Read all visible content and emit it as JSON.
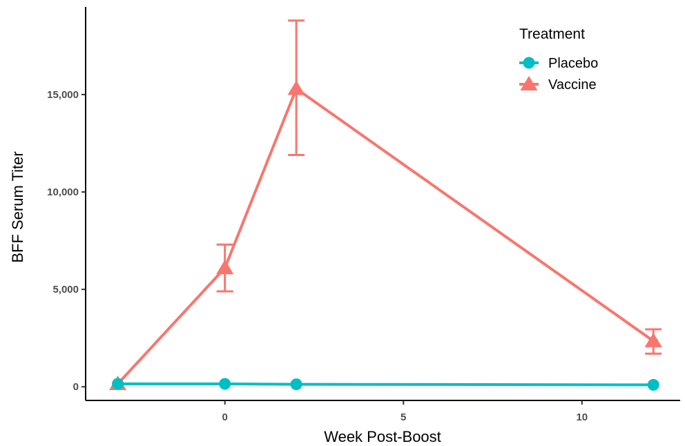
{
  "chart_data": {
    "type": "line",
    "title": "",
    "xlabel": "Week Post-Boost",
    "ylabel": "BFF Serum Titer",
    "xlim": [
      -3.9,
      12.75
    ],
    "ylim": [
      -700,
      19500
    ],
    "x_ticks": [
      0,
      5,
      10
    ],
    "x_tick_labels": [
      "0",
      "5",
      "10"
    ],
    "y_ticks": [
      0,
      5000,
      10000,
      15000
    ],
    "y_tick_labels": [
      "0",
      "5,000",
      "10,000",
      "15,000"
    ],
    "grid": false,
    "legend": {
      "title": "Treatment",
      "placement": "top-right"
    },
    "series": [
      {
        "name": "Placebo",
        "color": "#00BFC4",
        "marker": "circle",
        "points": [
          {
            "x": -3,
            "y": 150
          },
          {
            "x": 0,
            "y": 150
          },
          {
            "x": 2,
            "y": 130
          },
          {
            "x": 12,
            "y": 100
          }
        ]
      },
      {
        "name": "Vaccine",
        "color": "#F8766D",
        "marker": "triangle",
        "points": [
          {
            "x": -3,
            "y": 150
          },
          {
            "x": 0,
            "y": 6100,
            "err_low": 4900,
            "err_high": 7300
          },
          {
            "x": 2,
            "y": 15300,
            "err_low": 11900,
            "err_high": 18800
          },
          {
            "x": 12,
            "y": 2350,
            "err_low": 1700,
            "err_high": 2950
          }
        ]
      }
    ]
  }
}
